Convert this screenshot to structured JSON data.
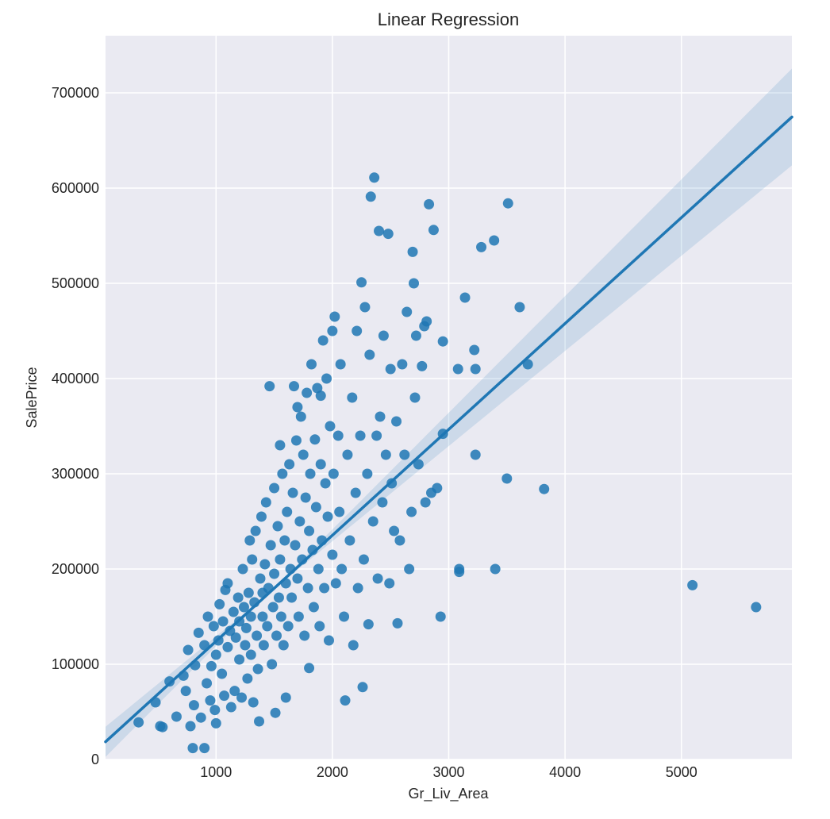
{
  "colors": {
    "plot_background": "#eaeaf2",
    "grid": "#ffffff",
    "points": "#1f77b4",
    "regression_line": "#1f77b4",
    "confidence_band": "#1f77b4"
  },
  "chart_data": {
    "type": "scatter",
    "title": "Linear Regression",
    "xlabel": "Gr_Liv_Area",
    "ylabel": "SalePrice",
    "xlim": [
      50,
      5950
    ],
    "ylim": [
      0,
      760000
    ],
    "xticks": [
      1000,
      2000,
      3000,
      4000,
      5000
    ],
    "xtick_labels": [
      "1000",
      "2000",
      "3000",
      "4000",
      "5000"
    ],
    "yticks": [
      0,
      100000,
      200000,
      300000,
      400000,
      500000,
      600000,
      700000
    ],
    "ytick_labels": [
      "0",
      "100000",
      "200000",
      "300000",
      "400000",
      "500000",
      "600000",
      "700000"
    ],
    "grid": true,
    "legend": "none",
    "regression": {
      "x_range": [
        50,
        5950
      ],
      "intercept": 13000,
      "slope": 111.2,
      "ci_at_start": [
        5000,
        31000
      ],
      "ci_at_end": [
        622000,
        722000
      ]
    },
    "points": [
      [
        334,
        39000
      ],
      [
        480,
        60000
      ],
      [
        520,
        35000
      ],
      [
        540,
        34000
      ],
      [
        600,
        82000
      ],
      [
        660,
        45000
      ],
      [
        720,
        88000
      ],
      [
        740,
        72000
      ],
      [
        760,
        115000
      ],
      [
        780,
        35000
      ],
      [
        800,
        12000
      ],
      [
        810,
        57000
      ],
      [
        820,
        99000
      ],
      [
        850,
        133000
      ],
      [
        870,
        44000
      ],
      [
        900,
        12000
      ],
      [
        900,
        120000
      ],
      [
        920,
        80000
      ],
      [
        930,
        150000
      ],
      [
        950,
        62000
      ],
      [
        960,
        98000
      ],
      [
        980,
        140000
      ],
      [
        990,
        52000
      ],
      [
        1000,
        38000
      ],
      [
        1000,
        110000
      ],
      [
        1020,
        125000
      ],
      [
        1030,
        163000
      ],
      [
        1050,
        90000
      ],
      [
        1060,
        145000
      ],
      [
        1070,
        67000
      ],
      [
        1080,
        178000
      ],
      [
        1100,
        118000
      ],
      [
        1100,
        185000
      ],
      [
        1120,
        135000
      ],
      [
        1130,
        55000
      ],
      [
        1150,
        155000
      ],
      [
        1160,
        72000
      ],
      [
        1170,
        128000
      ],
      [
        1190,
        170000
      ],
      [
        1200,
        105000
      ],
      [
        1200,
        145000
      ],
      [
        1220,
        65000
      ],
      [
        1230,
        200000
      ],
      [
        1240,
        160000
      ],
      [
        1250,
        120000
      ],
      [
        1260,
        138000
      ],
      [
        1270,
        85000
      ],
      [
        1280,
        175000
      ],
      [
        1290,
        230000
      ],
      [
        1300,
        150000
      ],
      [
        1300,
        110000
      ],
      [
        1310,
        210000
      ],
      [
        1320,
        60000
      ],
      [
        1330,
        165000
      ],
      [
        1340,
        240000
      ],
      [
        1350,
        130000
      ],
      [
        1360,
        95000
      ],
      [
        1370,
        40000
      ],
      [
        1380,
        190000
      ],
      [
        1390,
        255000
      ],
      [
        1400,
        150000
      ],
      [
        1400,
        175000
      ],
      [
        1410,
        120000
      ],
      [
        1420,
        205000
      ],
      [
        1430,
        270000
      ],
      [
        1440,
        140000
      ],
      [
        1450,
        180000
      ],
      [
        1460,
        392000
      ],
      [
        1470,
        225000
      ],
      [
        1480,
        100000
      ],
      [
        1490,
        160000
      ],
      [
        1500,
        285000
      ],
      [
        1500,
        195000
      ],
      [
        1510,
        49000
      ],
      [
        1520,
        130000
      ],
      [
        1530,
        245000
      ],
      [
        1540,
        170000
      ],
      [
        1550,
        330000
      ],
      [
        1550,
        210000
      ],
      [
        1560,
        150000
      ],
      [
        1570,
        300000
      ],
      [
        1580,
        120000
      ],
      [
        1590,
        230000
      ],
      [
        1600,
        185000
      ],
      [
        1600,
        65000
      ],
      [
        1610,
        260000
      ],
      [
        1620,
        140000
      ],
      [
        1630,
        310000
      ],
      [
        1640,
        200000
      ],
      [
        1650,
        170000
      ],
      [
        1660,
        280000
      ],
      [
        1670,
        392000
      ],
      [
        1680,
        225000
      ],
      [
        1690,
        335000
      ],
      [
        1700,
        190000
      ],
      [
        1700,
        370000
      ],
      [
        1710,
        150000
      ],
      [
        1720,
        250000
      ],
      [
        1730,
        360000
      ],
      [
        1740,
        210000
      ],
      [
        1750,
        320000
      ],
      [
        1760,
        130000
      ],
      [
        1770,
        275000
      ],
      [
        1780,
        385000
      ],
      [
        1790,
        180000
      ],
      [
        1800,
        240000
      ],
      [
        1800,
        96000
      ],
      [
        1810,
        300000
      ],
      [
        1820,
        415000
      ],
      [
        1830,
        220000
      ],
      [
        1840,
        160000
      ],
      [
        1850,
        336000
      ],
      [
        1860,
        265000
      ],
      [
        1870,
        390000
      ],
      [
        1880,
        200000
      ],
      [
        1890,
        140000
      ],
      [
        1900,
        310000
      ],
      [
        1900,
        382000
      ],
      [
        1910,
        230000
      ],
      [
        1920,
        440000
      ],
      [
        1930,
        180000
      ],
      [
        1940,
        290000
      ],
      [
        1950,
        400000
      ],
      [
        1960,
        255000
      ],
      [
        1970,
        125000
      ],
      [
        1980,
        350000
      ],
      [
        2000,
        450000
      ],
      [
        2000,
        215000
      ],
      [
        2010,
        300000
      ],
      [
        2020,
        465000
      ],
      [
        2030,
        185000
      ],
      [
        2050,
        340000
      ],
      [
        2060,
        260000
      ],
      [
        2070,
        415000
      ],
      [
        2080,
        200000
      ],
      [
        2100,
        150000
      ],
      [
        2110,
        62000
      ],
      [
        2130,
        320000
      ],
      [
        2150,
        230000
      ],
      [
        2170,
        380000
      ],
      [
        2180,
        120000
      ],
      [
        2200,
        280000
      ],
      [
        2210,
        450000
      ],
      [
        2220,
        180000
      ],
      [
        2240,
        340000
      ],
      [
        2250,
        501000
      ],
      [
        2260,
        76000
      ],
      [
        2270,
        210000
      ],
      [
        2280,
        475000
      ],
      [
        2300,
        300000
      ],
      [
        2310,
        142000
      ],
      [
        2320,
        425000
      ],
      [
        2330,
        591000
      ],
      [
        2350,
        250000
      ],
      [
        2360,
        611000
      ],
      [
        2380,
        340000
      ],
      [
        2390,
        190000
      ],
      [
        2400,
        555000
      ],
      [
        2410,
        360000
      ],
      [
        2430,
        270000
      ],
      [
        2440,
        445000
      ],
      [
        2460,
        320000
      ],
      [
        2480,
        552000
      ],
      [
        2490,
        185000
      ],
      [
        2500,
        410000
      ],
      [
        2510,
        290000
      ],
      [
        2530,
        240000
      ],
      [
        2550,
        355000
      ],
      [
        2560,
        143000
      ],
      [
        2580,
        230000
      ],
      [
        2600,
        415000
      ],
      [
        2620,
        320000
      ],
      [
        2640,
        470000
      ],
      [
        2660,
        200000
      ],
      [
        2680,
        260000
      ],
      [
        2690,
        533000
      ],
      [
        2700,
        500000
      ],
      [
        2710,
        380000
      ],
      [
        2720,
        445000
      ],
      [
        2740,
        310000
      ],
      [
        2770,
        413000
      ],
      [
        2790,
        455000
      ],
      [
        2800,
        270000
      ],
      [
        2810,
        460000
      ],
      [
        2830,
        583000
      ],
      [
        2850,
        280000
      ],
      [
        2870,
        556000
      ],
      [
        2900,
        285000
      ],
      [
        2930,
        150000
      ],
      [
        2950,
        439000
      ],
      [
        2950,
        342000
      ],
      [
        3080,
        410000
      ],
      [
        3090,
        200000
      ],
      [
        3090,
        197000
      ],
      [
        3140,
        485000
      ],
      [
        3220,
        430000
      ],
      [
        3230,
        320000
      ],
      [
        3230,
        410000
      ],
      [
        3280,
        538000
      ],
      [
        3390,
        545000
      ],
      [
        3400,
        200000
      ],
      [
        3500,
        295000
      ],
      [
        3510,
        584000
      ],
      [
        3610,
        475000
      ],
      [
        3680,
        415000
      ],
      [
        3820,
        284000
      ],
      [
        5095,
        183000
      ],
      [
        5642,
        160000
      ]
    ]
  }
}
